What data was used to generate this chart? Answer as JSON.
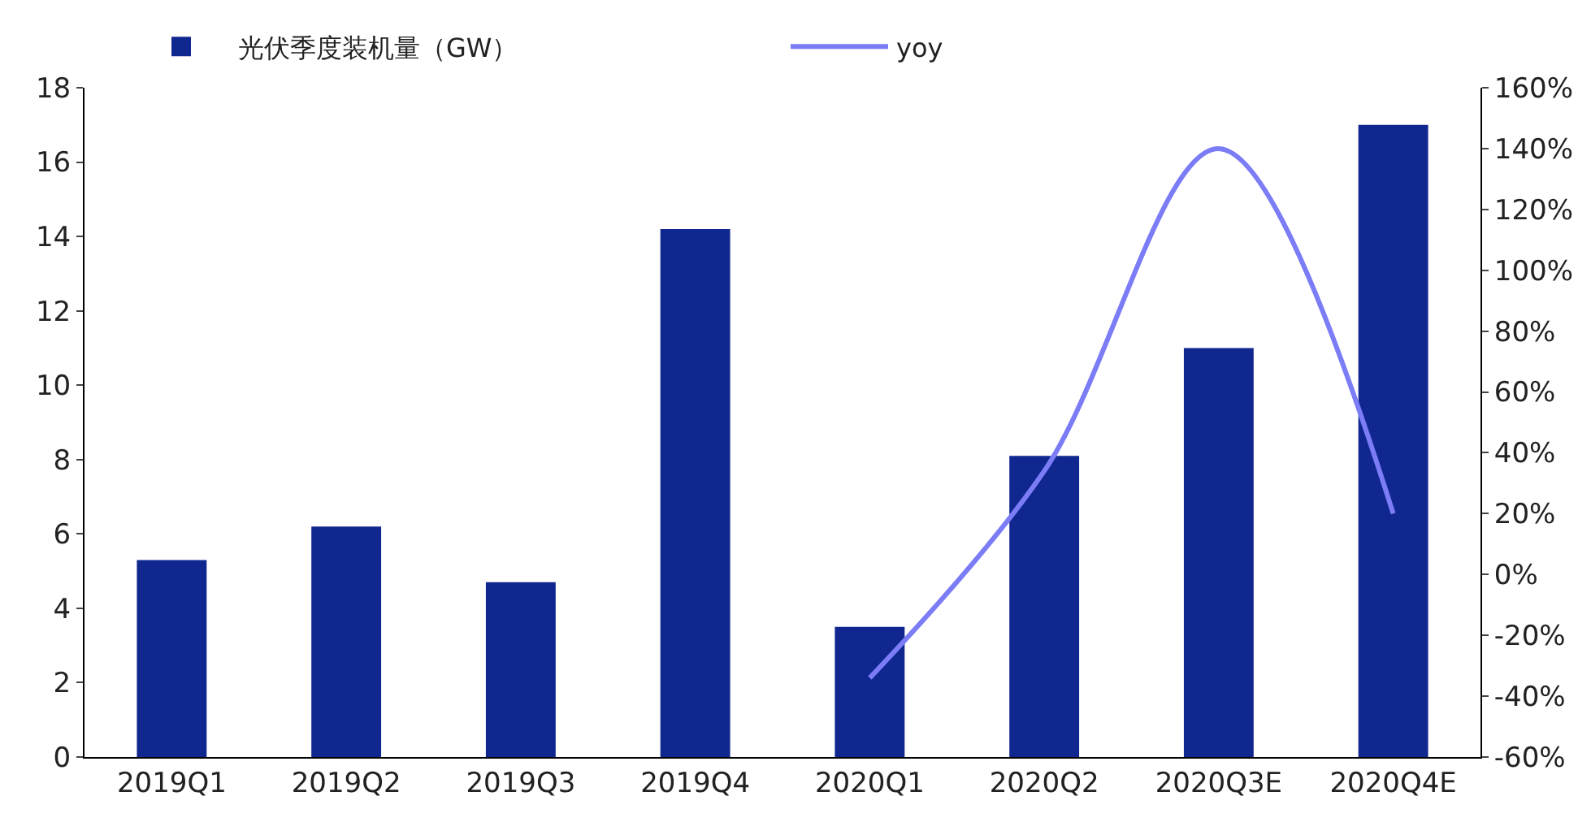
{
  "chart_data": {
    "type": "bar",
    "categories": [
      "2019Q1",
      "2019Q2",
      "2019Q3",
      "2019Q4",
      "2020Q1",
      "2020Q2",
      "2020Q3E",
      "2020Q4E"
    ],
    "series": [
      {
        "name": "光伏季度装机量（GW）",
        "color": "#10278f",
        "values": [
          5.3,
          6.2,
          4.7,
          14.2,
          3.5,
          8.1,
          11.0,
          17.0
        ]
      },
      {
        "name": "yoy",
        "type": "line",
        "axis": "y2",
        "color": "#7b7cf6",
        "values": [
          null,
          null,
          null,
          null,
          -34,
          34,
          140,
          20
        ]
      }
    ],
    "ylim": [
      0,
      18
    ],
    "yticks": [
      0,
      2,
      4,
      6,
      8,
      10,
      12,
      14,
      16,
      18
    ],
    "y2lim": [
      -60,
      160
    ],
    "y2ticks": [
      {
        "value": -60,
        "label": "-60%"
      },
      {
        "value": -40,
        "label": "-40%"
      },
      {
        "value": -20,
        "label": "-20%"
      },
      {
        "value": 0,
        "label": "0%"
      },
      {
        "value": 20,
        "label": "20%"
      },
      {
        "value": 40,
        "label": "40%"
      },
      {
        "value": 60,
        "label": "60%"
      },
      {
        "value": 80,
        "label": "80%"
      },
      {
        "value": 100,
        "label": "100%"
      },
      {
        "value": 120,
        "label": "120%"
      },
      {
        "value": 140,
        "label": "140%"
      },
      {
        "value": 160,
        "label": "160%"
      }
    ],
    "grid": false,
    "legend": "top",
    "marker": "none",
    "line_style": "solid"
  }
}
